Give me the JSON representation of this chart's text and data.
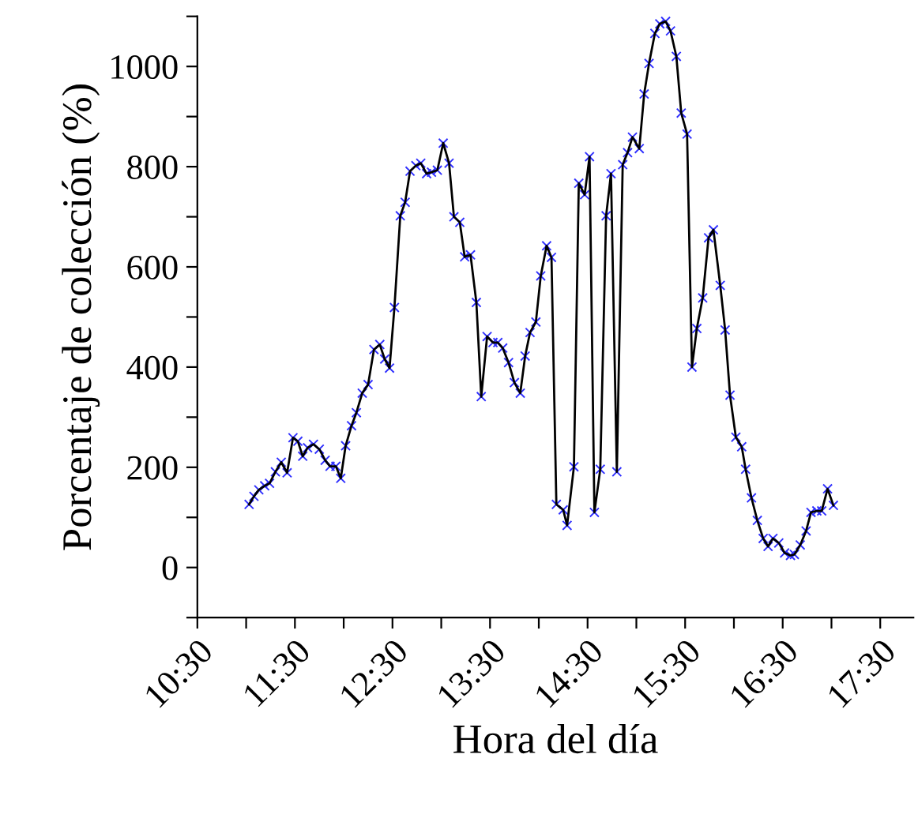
{
  "chart_data": {
    "type": "line",
    "xlabel": "Hora del día",
    "ylabel": "Porcentaje de colección (%)",
    "x": [
      11.03,
      11.08,
      11.13,
      11.19,
      11.24,
      11.3,
      11.36,
      11.42,
      11.48,
      11.53,
      11.58,
      11.63,
      11.69,
      11.75,
      11.81,
      11.86,
      11.92,
      11.97,
      12.02,
      12.08,
      12.13,
      12.19,
      12.25,
      12.31,
      12.37,
      12.42,
      12.47,
      12.52,
      12.58,
      12.63,
      12.68,
      12.74,
      12.79,
      12.85,
      12.9,
      12.96,
      13.02,
      13.08,
      13.13,
      13.19,
      13.24,
      13.3,
      13.36,
      13.41,
      13.47,
      13.53,
      13.58,
      13.63,
      13.69,
      13.75,
      13.81,
      13.86,
      13.91,
      13.97,
      14.02,
      14.08,
      14.13,
      14.18,
      14.25,
      14.29,
      14.36,
      14.41,
      14.47,
      14.52,
      14.57,
      14.63,
      14.69,
      14.74,
      14.8,
      14.86,
      14.91,
      14.96,
      15.03,
      15.08,
      15.13,
      15.19,
      15.24,
      15.3,
      15.35,
      15.41,
      15.46,
      15.52,
      15.57,
      15.62,
      15.68,
      15.74,
      15.79,
      15.86,
      15.91,
      15.96,
      16.02,
      16.08,
      16.12,
      16.18,
      16.24,
      16.3,
      16.35,
      16.4,
      16.46,
      16.52,
      16.58,
      16.62,
      16.68,
      16.74,
      16.79,
      16.85,
      16.9,
      16.96,
      17.02
    ],
    "series": [
      {
        "color": "#000000",
        "values": [
          126,
          142,
          155,
          163,
          168,
          191,
          210,
          189,
          259,
          252,
          222,
          239,
          246,
          236,
          214,
          202,
          202,
          178,
          243,
          283,
          309,
          348,
          365,
          435,
          445,
          416,
          398,
          519,
          702,
          729,
          791,
          802,
          807,
          786,
          789,
          793,
          847,
          807,
          700,
          689,
          620,
          624,
          529,
          341,
          461,
          449,
          449,
          438,
          409,
          369,
          348,
          422,
          469,
          490,
          582,
          642,
          619,
          126,
          115,
          84,
          201,
          767,
          744,
          820,
          110,
          196,
          702,
          786,
          191,
          804,
          828,
          859,
          836,
          945,
          1006,
          1066,
          1085,
          1090,
          1071,
          1020,
          907,
          865,
          400,
          477,
          538,
          658,
          674,
          563,
          474,
          344,
          260,
          241,
          196,
          139,
          94,
          58,
          42,
          58,
          49,
          29,
          24,
          26,
          45,
          73,
          110,
          113,
          113,
          157,
          124
        ]
      }
    ],
    "marker": "cross",
    "line_style": "solid",
    "grid": false,
    "legend": false,
    "xlim": [
      10.5,
      17.84
    ],
    "ylim": [
      -100,
      1100
    ],
    "xticks": [
      {
        "value": 10.5,
        "label": "10:30"
      },
      {
        "value": 11,
        "label": null
      },
      {
        "value": 11.5,
        "label": "11:30"
      },
      {
        "value": 12,
        "label": null
      },
      {
        "value": 12.5,
        "label": "12:30"
      },
      {
        "value": 13,
        "label": null
      },
      {
        "value": 13.5,
        "label": "13:30"
      },
      {
        "value": 14,
        "label": null
      },
      {
        "value": 14.5,
        "label": "14:30"
      },
      {
        "value": 15,
        "label": null
      },
      {
        "value": 15.5,
        "label": "15:30"
      },
      {
        "value": 16,
        "label": null
      },
      {
        "value": 16.5,
        "label": "16:30"
      },
      {
        "value": 17,
        "label": null
      },
      {
        "value": 17.5,
        "label": "17:30"
      }
    ],
    "yticks": [
      {
        "value": -100,
        "label": null
      },
      0,
      {
        "value": 100,
        "label": null
      },
      200,
      {
        "value": 300,
        "label": null
      },
      400,
      {
        "value": 500,
        "label": null
      },
      600,
      {
        "value": 700,
        "label": null
      },
      800,
      {
        "value": 900,
        "label": null
      },
      1000,
      {
        "value": 1100,
        "label": null
      }
    ]
  }
}
